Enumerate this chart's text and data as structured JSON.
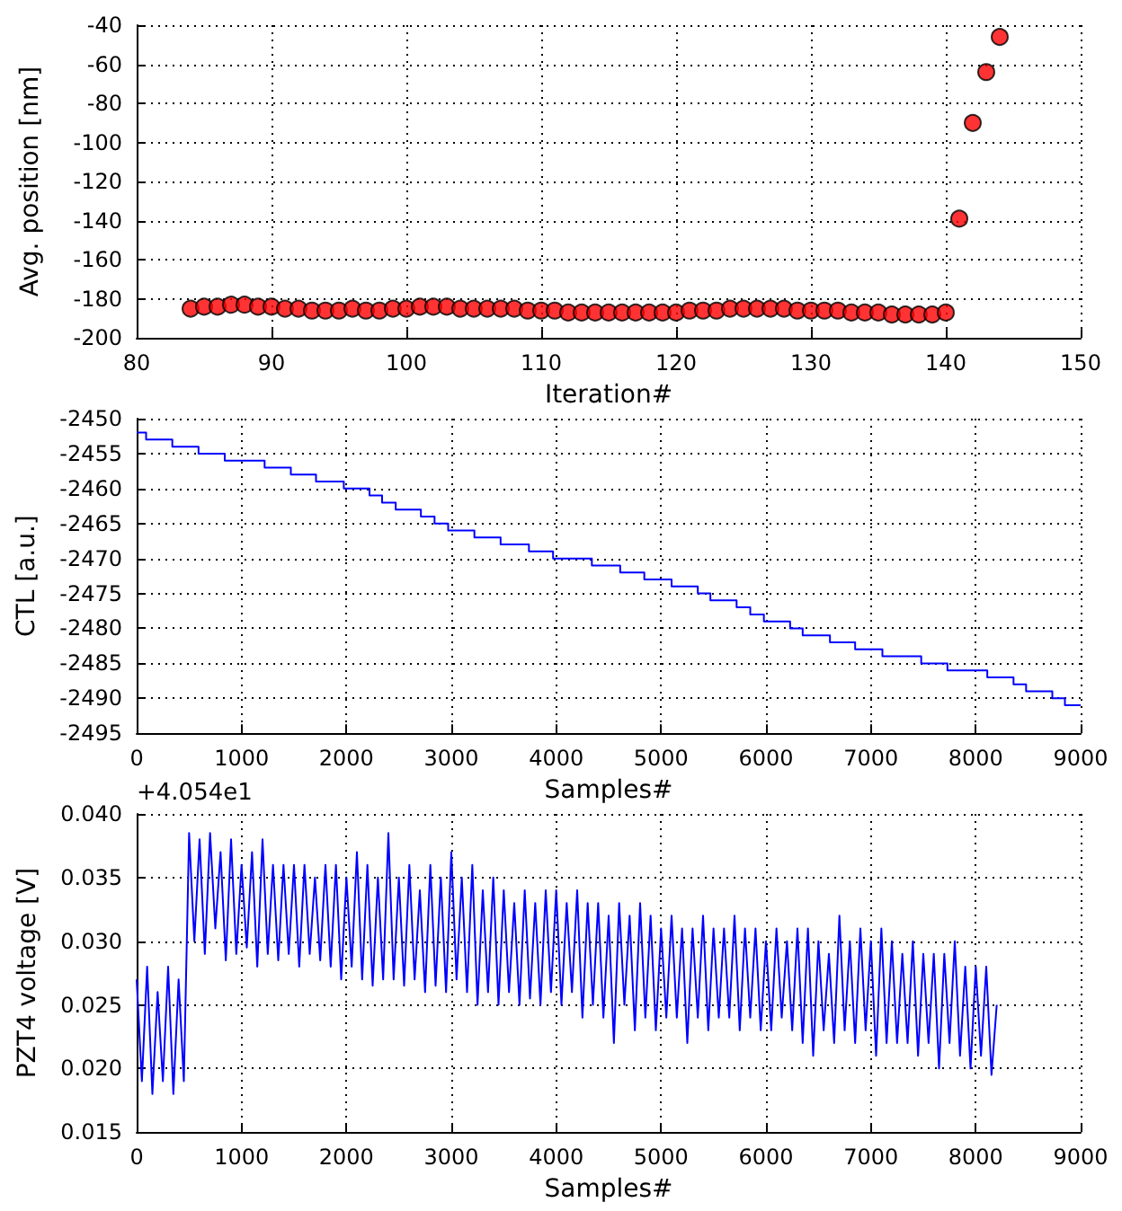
{
  "chart_data": [
    {
      "type": "scatter",
      "xlabel": "Iteration#",
      "ylabel": "Avg. position [nm]",
      "xlim": [
        80,
        150
      ],
      "xticks": [
        80,
        90,
        100,
        110,
        120,
        130,
        140,
        150
      ],
      "ylim": [
        -200,
        -40
      ],
      "yticks": [
        -200,
        -180,
        -160,
        -140,
        -120,
        -100,
        -80,
        -60,
        -40
      ],
      "grid": true,
      "marker": "circle",
      "x": [
        84,
        85,
        86,
        87,
        88,
        89,
        90,
        91,
        92,
        93,
        94,
        95,
        96,
        97,
        98,
        99,
        100,
        101,
        102,
        103,
        104,
        105,
        106,
        107,
        108,
        109,
        110,
        111,
        112,
        113,
        114,
        115,
        116,
        117,
        118,
        119,
        120,
        121,
        122,
        123,
        124,
        125,
        126,
        127,
        128,
        129,
        130,
        131,
        132,
        133,
        134,
        135,
        136,
        137,
        138,
        139,
        140,
        141,
        142,
        143,
        144
      ],
      "series": [
        {
          "color": "#ff0000",
          "values": [
            -185,
            -184,
            -184,
            -183,
            -183,
            -184,
            -184,
            -185,
            -185,
            -186,
            -186,
            -186,
            -185,
            -186,
            -186,
            -185,
            -185,
            -184,
            -184,
            -184,
            -185,
            -185,
            -185,
            -185,
            -185,
            -186,
            -186,
            -186,
            -187,
            -187,
            -187,
            -187,
            -187,
            -187,
            -187,
            -187,
            -187,
            -186,
            -186,
            -186,
            -185,
            -185,
            -185,
            -185,
            -185,
            -186,
            -186,
            -186,
            -186,
            -187,
            -187,
            -187,
            -188,
            -188,
            -188,
            -188,
            -187,
            -139,
            -90,
            -64,
            -46
          ]
        }
      ]
    },
    {
      "type": "step",
      "xlabel": "Samples#",
      "ylabel": "CTL [a.u.]",
      "xlim": [
        0,
        9000
      ],
      "xticks": [
        0,
        1000,
        2000,
        3000,
        4000,
        5000,
        6000,
        7000,
        8000,
        9000
      ],
      "ylim": [
        -2495,
        -2450
      ],
      "yticks": [
        -2495,
        -2490,
        -2485,
        -2480,
        -2475,
        -2470,
        -2465,
        -2460,
        -2455,
        -2450
      ],
      "grid": true,
      "x": [
        0,
        90,
        340,
        590,
        840,
        1220,
        1470,
        1710,
        1975,
        2220,
        2340,
        2470,
        2710,
        2840,
        2970,
        3220,
        3470,
        3740,
        3970,
        4340,
        4610,
        4840,
        5100,
        5350,
        5470,
        5720,
        5850,
        5980,
        6230,
        6350,
        6610,
        6850,
        7110,
        7480,
        7730,
        8110,
        8360,
        8480,
        8730,
        8850,
        9000
      ],
      "series": [
        {
          "color": "#0000ff",
          "values": [
            -2452,
            -2453,
            -2454,
            -2455,
            -2456,
            -2457,
            -2458,
            -2459,
            -2460,
            -2461,
            -2462,
            -2463,
            -2464,
            -2465,
            -2466,
            -2467,
            -2468,
            -2469,
            -2470,
            -2471,
            -2472,
            -2473,
            -2474,
            -2475,
            -2476,
            -2477,
            -2478,
            -2479,
            -2480,
            -2481,
            -2482,
            -2483,
            -2484,
            -2485,
            -2486,
            -2487,
            -2488,
            -2489,
            -2490,
            -2491,
            -2491
          ]
        }
      ]
    },
    {
      "type": "line",
      "xlabel": "Samples#",
      "ylabel": "PZT4 voltage [V]",
      "annotations": [
        "+4.054e1"
      ],
      "xlim": [
        0,
        9000
      ],
      "xticks": [
        0,
        1000,
        2000,
        3000,
        4000,
        5000,
        6000,
        7000,
        8000,
        9000
      ],
      "ylim": [
        0.015,
        0.04
      ],
      "yticks": [
        0.015,
        {
          "value": 0.02,
          "label": "0.020"
        },
        0.025,
        {
          "value": 0.03,
          "label": "0.030"
        },
        0.035,
        {
          "value": 0.04,
          "label": "0.040"
        }
      ],
      "grid": true,
      "x": [
        0,
        50,
        100,
        150,
        200,
        250,
        300,
        350,
        400,
        450,
        500,
        550,
        600,
        650,
        700,
        750,
        800,
        850,
        900,
        950,
        1000,
        1050,
        1100,
        1150,
        1200,
        1250,
        1300,
        1350,
        1400,
        1450,
        1500,
        1550,
        1600,
        1650,
        1700,
        1750,
        1800,
        1850,
        1900,
        1950,
        2000,
        2050,
        2100,
        2150,
        2200,
        2250,
        2300,
        2350,
        2400,
        2450,
        2500,
        2550,
        2600,
        2650,
        2700,
        2750,
        2800,
        2850,
        2900,
        2950,
        3000,
        3050,
        3100,
        3150,
        3200,
        3250,
        3300,
        3350,
        3400,
        3450,
        3500,
        3550,
        3600,
        3650,
        3700,
        3750,
        3800,
        3850,
        3900,
        3950,
        4000,
        4050,
        4100,
        4150,
        4200,
        4250,
        4300,
        4350,
        4400,
        4450,
        4500,
        4550,
        4600,
        4650,
        4700,
        4750,
        4800,
        4850,
        4900,
        4950,
        5000,
        5050,
        5100,
        5150,
        5200,
        5250,
        5300,
        5350,
        5400,
        5450,
        5500,
        5550,
        5600,
        5650,
        5700,
        5750,
        5800,
        5850,
        5900,
        5950,
        6000,
        6050,
        6100,
        6150,
        6200,
        6250,
        6300,
        6350,
        6400,
        6450,
        6500,
        6550,
        6600,
        6650,
        6700,
        6750,
        6800,
        6850,
        6900,
        6950,
        7000,
        7050,
        7100,
        7150,
        7200,
        7250,
        7300,
        7350,
        7400,
        7450,
        7500,
        7550,
        7600,
        7650,
        7700,
        7750,
        7800,
        7850,
        7900,
        7950,
        8000,
        8050,
        8100,
        8150,
        8200
      ],
      "series": [
        {
          "color": "#0000ff",
          "values": [
            0.027,
            0.019,
            0.028,
            0.018,
            0.026,
            0.019,
            0.028,
            0.018,
            0.027,
            0.019,
            0.0385,
            0.03,
            0.038,
            0.029,
            0.0385,
            0.031,
            0.037,
            0.0285,
            0.038,
            0.029,
            0.036,
            0.0295,
            0.037,
            0.028,
            0.038,
            0.029,
            0.036,
            0.0285,
            0.036,
            0.029,
            0.036,
            0.028,
            0.036,
            0.029,
            0.035,
            0.0285,
            0.036,
            0.028,
            0.036,
            0.027,
            0.035,
            0.028,
            0.037,
            0.027,
            0.036,
            0.0265,
            0.035,
            0.027,
            0.0385,
            0.027,
            0.035,
            0.0265,
            0.036,
            0.027,
            0.034,
            0.026,
            0.036,
            0.0265,
            0.035,
            0.026,
            0.037,
            0.027,
            0.035,
            0.026,
            0.036,
            0.025,
            0.034,
            0.026,
            0.035,
            0.025,
            0.034,
            0.026,
            0.033,
            0.025,
            0.034,
            0.0255,
            0.033,
            0.025,
            0.034,
            0.026,
            0.034,
            0.025,
            0.033,
            0.026,
            0.034,
            0.024,
            0.033,
            0.025,
            0.033,
            0.024,
            0.032,
            0.022,
            0.033,
            0.025,
            0.032,
            0.023,
            0.033,
            0.024,
            0.032,
            0.023,
            0.031,
            0.024,
            0.032,
            0.024,
            0.031,
            0.022,
            0.031,
            0.024,
            0.032,
            0.023,
            0.031,
            0.024,
            0.031,
            0.024,
            0.032,
            0.023,
            0.031,
            0.024,
            0.031,
            0.023,
            0.03,
            0.023,
            0.031,
            0.024,
            0.03,
            0.023,
            0.031,
            0.022,
            0.031,
            0.021,
            0.03,
            0.023,
            0.029,
            0.022,
            0.032,
            0.023,
            0.03,
            0.022,
            0.031,
            0.023,
            0.03,
            0.021,
            0.031,
            0.022,
            0.03,
            0.022,
            0.029,
            0.022,
            0.03,
            0.021,
            0.029,
            0.022,
            0.029,
            0.02,
            0.029,
            0.022,
            0.03,
            0.021,
            0.028,
            0.02,
            0.028,
            0.021,
            0.028,
            0.0195,
            0.025
          ]
        }
      ]
    }
  ]
}
